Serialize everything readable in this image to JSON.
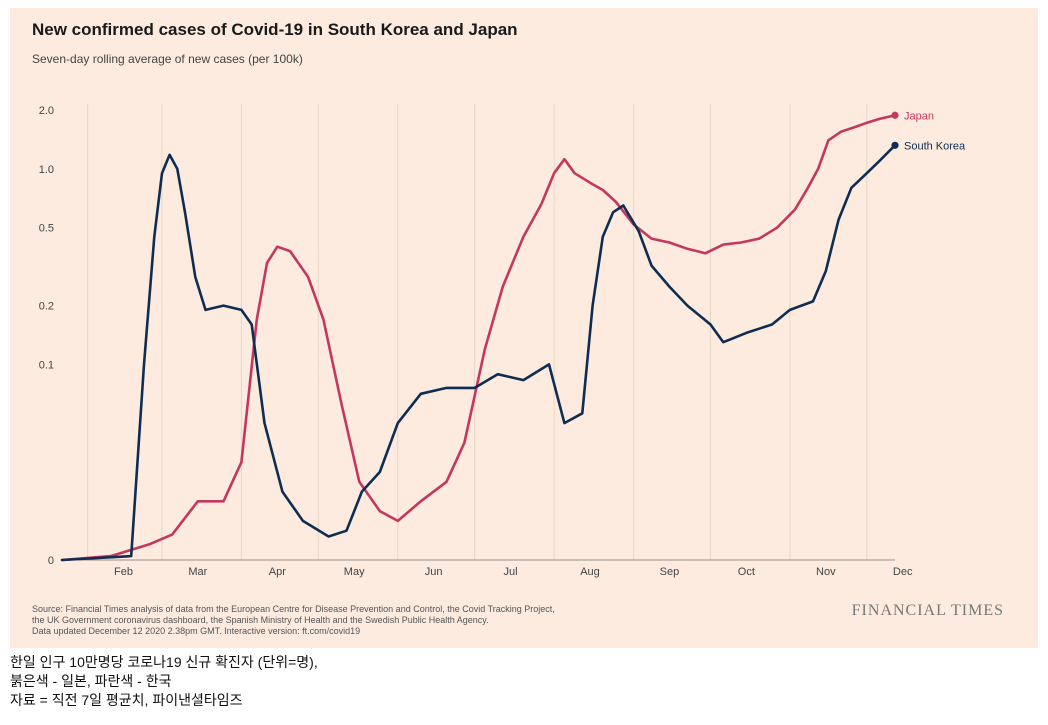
{
  "chart_data": {
    "type": "line",
    "title": "New confirmed cases of Covid-19 in South Korea and Japan",
    "subtitle": "Seven-day rolling average of new cases (per 100k)",
    "y_scale": "symlog",
    "y_ticks": [
      0,
      0.1,
      0.2,
      0.5,
      1.0,
      2.0
    ],
    "y_tick_labels": [
      "0",
      "0.1",
      "0.2",
      "0.5",
      "1.0",
      "2.0"
    ],
    "x_ticks": [
      "Feb",
      "Mar",
      "Apr",
      "May",
      "Jun",
      "Jul",
      "Aug",
      "Sep",
      "Oct",
      "Nov",
      "Dec"
    ],
    "x_range": [
      "2020-01-22",
      "2020-12-12"
    ],
    "grid": "vertical",
    "legend": "direct labels at line ends",
    "series": [
      {
        "name": "Japan",
        "color": "#c4375e",
        "points": [
          [
            "2020-01-22",
            0
          ],
          [
            "2020-02-10",
            0.002
          ],
          [
            "2020-02-25",
            0.008
          ],
          [
            "2020-03-05",
            0.013
          ],
          [
            "2020-03-15",
            0.03
          ],
          [
            "2020-03-25",
            0.03
          ],
          [
            "2020-04-01",
            0.05
          ],
          [
            "2020-04-07",
            0.17
          ],
          [
            "2020-04-11",
            0.33
          ],
          [
            "2020-04-15",
            0.4
          ],
          [
            "2020-04-20",
            0.38
          ],
          [
            "2020-04-27",
            0.28
          ],
          [
            "2020-05-03",
            0.17
          ],
          [
            "2020-05-10",
            0.08
          ],
          [
            "2020-05-17",
            0.04
          ],
          [
            "2020-05-25",
            0.025
          ],
          [
            "2020-06-01",
            0.02
          ],
          [
            "2020-06-10",
            0.03
          ],
          [
            "2020-06-20",
            0.04
          ],
          [
            "2020-06-27",
            0.06
          ],
          [
            "2020-07-05",
            0.12
          ],
          [
            "2020-07-12",
            0.25
          ],
          [
            "2020-07-20",
            0.45
          ],
          [
            "2020-07-27",
            0.66
          ],
          [
            "2020-08-01",
            0.95
          ],
          [
            "2020-08-05",
            1.12
          ],
          [
            "2020-08-09",
            0.95
          ],
          [
            "2020-08-15",
            0.85
          ],
          [
            "2020-08-20",
            0.78
          ],
          [
            "2020-08-25",
            0.68
          ],
          [
            "2020-09-01",
            0.52
          ],
          [
            "2020-09-08",
            0.44
          ],
          [
            "2020-09-15",
            0.42
          ],
          [
            "2020-09-22",
            0.39
          ],
          [
            "2020-09-29",
            0.37
          ],
          [
            "2020-10-06",
            0.41
          ],
          [
            "2020-10-13",
            0.42
          ],
          [
            "2020-10-20",
            0.44
          ],
          [
            "2020-10-27",
            0.5
          ],
          [
            "2020-11-03",
            0.62
          ],
          [
            "2020-11-08",
            0.8
          ],
          [
            "2020-11-12",
            1.0
          ],
          [
            "2020-11-16",
            1.4
          ],
          [
            "2020-11-21",
            1.55
          ],
          [
            "2020-11-26",
            1.63
          ],
          [
            "2020-12-01",
            1.72
          ],
          [
            "2020-12-06",
            1.8
          ],
          [
            "2020-12-12",
            1.88
          ]
        ]
      },
      {
        "name": "South Korea",
        "color": "#0f2d52",
        "points": [
          [
            "2020-01-22",
            0
          ],
          [
            "2020-02-18",
            0.002
          ],
          [
            "2020-02-23",
            0.1
          ],
          [
            "2020-02-27",
            0.45
          ],
          [
            "2020-03-01",
            0.95
          ],
          [
            "2020-03-04",
            1.18
          ],
          [
            "2020-03-07",
            1.0
          ],
          [
            "2020-03-10",
            0.6
          ],
          [
            "2020-03-14",
            0.28
          ],
          [
            "2020-03-18",
            0.19
          ],
          [
            "2020-03-25",
            0.2
          ],
          [
            "2020-04-01",
            0.19
          ],
          [
            "2020-04-05",
            0.16
          ],
          [
            "2020-04-10",
            0.07
          ],
          [
            "2020-04-17",
            0.035
          ],
          [
            "2020-04-25",
            0.02
          ],
          [
            "2020-05-05",
            0.012
          ],
          [
            "2020-05-12",
            0.015
          ],
          [
            "2020-05-18",
            0.035
          ],
          [
            "2020-05-25",
            0.045
          ],
          [
            "2020-06-01",
            0.07
          ],
          [
            "2020-06-10",
            0.085
          ],
          [
            "2020-06-20",
            0.088
          ],
          [
            "2020-07-01",
            0.088
          ],
          [
            "2020-07-10",
            0.095
          ],
          [
            "2020-07-20",
            0.092
          ],
          [
            "2020-07-30",
            0.1
          ],
          [
            "2020-08-05",
            0.07
          ],
          [
            "2020-08-12",
            0.075
          ],
          [
            "2020-08-16",
            0.2
          ],
          [
            "2020-08-20",
            0.45
          ],
          [
            "2020-08-24",
            0.6
          ],
          [
            "2020-08-28",
            0.65
          ],
          [
            "2020-09-03",
            0.48
          ],
          [
            "2020-09-08",
            0.32
          ],
          [
            "2020-09-15",
            0.25
          ],
          [
            "2020-09-22",
            0.2
          ],
          [
            "2020-10-01",
            0.16
          ],
          [
            "2020-10-06",
            0.13
          ],
          [
            "2020-10-15",
            0.145
          ],
          [
            "2020-10-25",
            0.16
          ],
          [
            "2020-11-01",
            0.19
          ],
          [
            "2020-11-10",
            0.21
          ],
          [
            "2020-11-15",
            0.3
          ],
          [
            "2020-11-20",
            0.55
          ],
          [
            "2020-11-25",
            0.8
          ],
          [
            "2020-12-01",
            0.95
          ],
          [
            "2020-12-06",
            1.1
          ],
          [
            "2020-12-12",
            1.32
          ]
        ]
      }
    ],
    "source_lines": [
      "Source: Financial Times analysis of data from the European Centre for Disease Prevention and Control, the Covid Tracking Project,",
      "the UK Government coronavirus dashboard, the Spanish Ministry of Health and the Swedish Public Health Agency.",
      "Data updated December 12 2020 2.38pm GMT. Interactive version: ft.com/covid19"
    ],
    "brand": "FINANCIAL TIMES"
  },
  "caption": [
    "한일 인구 10만명당 코로나19 신규 확진자 (단위=명),",
    "붉은색 - 일본, 파란색 - 한국",
    "자료 = 직전 7일 평균치, 파이낸셜타임즈"
  ]
}
